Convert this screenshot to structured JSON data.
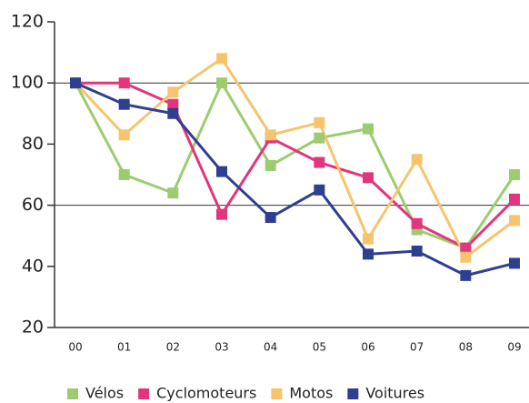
{
  "chart_data": {
    "type": "line",
    "categories": [
      "00",
      "01",
      "02",
      "03",
      "04",
      "05",
      "06",
      "07",
      "08",
      "09"
    ],
    "series": [
      {
        "name": "Vélos",
        "color": "#9dcc6f",
        "values": [
          100,
          70,
          64,
          100,
          73,
          82,
          85,
          52,
          46,
          70
        ]
      },
      {
        "name": "Cyclomoteurs",
        "color": "#e2357b",
        "values": [
          100,
          100,
          93,
          57,
          82,
          74,
          69,
          54,
          46,
          62
        ]
      },
      {
        "name": "Motos",
        "color": "#f6c46c",
        "values": [
          100,
          83,
          97,
          108,
          83,
          87,
          49,
          75,
          43,
          55
        ]
      },
      {
        "name": "Voitures",
        "color": "#2f3f8f",
        "values": [
          100,
          93,
          90,
          71,
          56,
          65,
          44,
          45,
          37,
          41
        ]
      }
    ],
    "ylim": [
      20,
      120
    ],
    "yticks": [
      20,
      40,
      60,
      80,
      100,
      120
    ],
    "gridlines": [
      60,
      100
    ],
    "legend": "bottom"
  }
}
